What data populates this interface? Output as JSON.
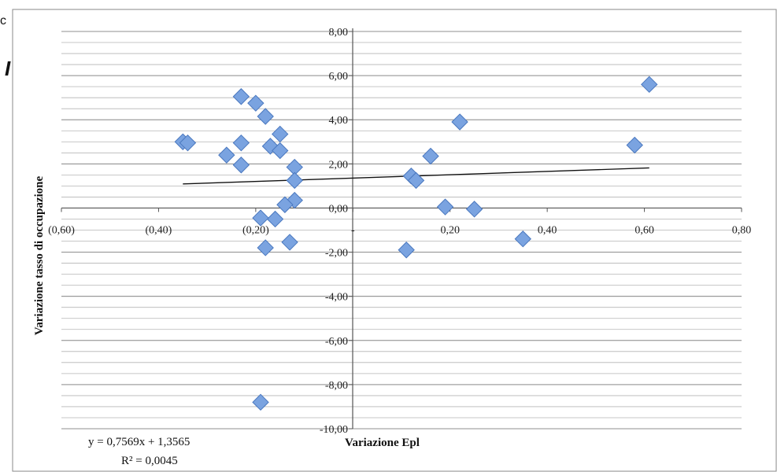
{
  "stray_marks": {
    "top_letter": "c",
    "left_letter": "I"
  },
  "chart_data": {
    "type": "scatter",
    "title": "",
    "xlabel": "Variazione Epl",
    "ylabel": "Variazione tasso di occupazione",
    "xlim": [
      -0.6,
      0.8
    ],
    "ylim": [
      -10.0,
      8.0
    ],
    "x_ticks": [
      {
        "value": -0.6,
        "label": "(0,60)"
      },
      {
        "value": -0.4,
        "label": "(0,40)"
      },
      {
        "value": -0.2,
        "label": "(0,20)"
      },
      {
        "value": 0.0,
        "label": "-"
      },
      {
        "value": 0.2,
        "label": "0,20"
      },
      {
        "value": 0.4,
        "label": "0,40"
      },
      {
        "value": 0.6,
        "label": "0,60"
      },
      {
        "value": 0.8,
        "label": "0,80"
      }
    ],
    "y_ticks": [
      {
        "value": 8,
        "label": "8,00"
      },
      {
        "value": 6,
        "label": "6,00"
      },
      {
        "value": 4,
        "label": "4,00"
      },
      {
        "value": 2,
        "label": "2,00"
      },
      {
        "value": 0,
        "label": "0,00"
      },
      {
        "value": -2,
        "label": "-2,00"
      },
      {
        "value": -4,
        "label": "-4,00"
      },
      {
        "value": -6,
        "label": "-6,00"
      },
      {
        "value": -8,
        "label": "-8,00"
      },
      {
        "value": -10,
        "label": "-10,00"
      }
    ],
    "minor_grid_step": 0.5,
    "grid": true,
    "marker_color": "#7aa3e0",
    "marker_edge": "#4a78bf",
    "points": [
      {
        "x": -0.35,
        "y": 3.0
      },
      {
        "x": -0.34,
        "y": 2.95
      },
      {
        "x": -0.26,
        "y": 2.4
      },
      {
        "x": -0.23,
        "y": 5.05
      },
      {
        "x": -0.23,
        "y": 2.95
      },
      {
        "x": -0.23,
        "y": 1.95
      },
      {
        "x": -0.2,
        "y": 4.75
      },
      {
        "x": -0.18,
        "y": 4.15
      },
      {
        "x": -0.17,
        "y": 2.8
      },
      {
        "x": -0.15,
        "y": 3.35
      },
      {
        "x": -0.15,
        "y": 2.6
      },
      {
        "x": -0.12,
        "y": 1.85
      },
      {
        "x": -0.12,
        "y": 1.25
      },
      {
        "x": -0.12,
        "y": 0.35
      },
      {
        "x": -0.14,
        "y": 0.15
      },
      {
        "x": -0.16,
        "y": -0.5
      },
      {
        "x": -0.19,
        "y": -0.45
      },
      {
        "x": -0.18,
        "y": -1.8
      },
      {
        "x": -0.13,
        "y": -1.55
      },
      {
        "x": -0.19,
        "y": -8.8
      },
      {
        "x": 0.12,
        "y": 1.45
      },
      {
        "x": 0.13,
        "y": 1.25
      },
      {
        "x": 0.16,
        "y": 2.35
      },
      {
        "x": 0.22,
        "y": 3.9
      },
      {
        "x": 0.19,
        "y": 0.05
      },
      {
        "x": 0.25,
        "y": -0.05
      },
      {
        "x": 0.11,
        "y": -1.9
      },
      {
        "x": 0.35,
        "y": -1.4
      },
      {
        "x": 0.58,
        "y": 2.85
      },
      {
        "x": 0.61,
        "y": 5.6
      }
    ],
    "trendline": {
      "slope": 0.7569,
      "intercept": 1.3565,
      "x_range": [
        -0.35,
        0.61
      ],
      "equation_label": "y = 0,7569x + 1,3565",
      "r2_label": "R² = 0,0045"
    }
  }
}
